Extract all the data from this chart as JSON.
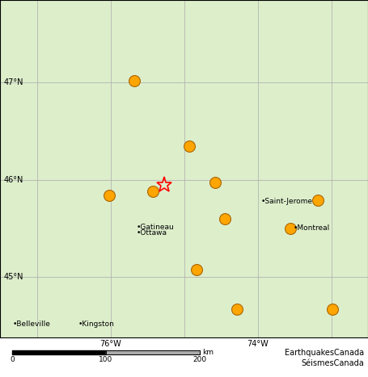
{
  "lon_min": -77.5,
  "lon_max": -72.5,
  "lat_min": 44.38,
  "lat_max": 47.85,
  "bg_color": "#ddeecb",
  "water_color": "#6ab4d8",
  "grid_color": "#aaaaaa",
  "border_color": "#333333",
  "lat_ticks": [
    45,
    46,
    47
  ],
  "lon_ticks": [
    -77,
    -76,
    -75,
    -74,
    -73
  ],
  "earthquakes": [
    {
      "lon": -75.68,
      "lat": 47.02
    },
    {
      "lon": -74.93,
      "lat": 46.35
    },
    {
      "lon": -75.42,
      "lat": 45.88
    },
    {
      "lon": -74.58,
      "lat": 45.97
    },
    {
      "lon": -74.45,
      "lat": 45.6
    },
    {
      "lon": -73.55,
      "lat": 45.5
    },
    {
      "lon": -73.18,
      "lat": 45.79
    },
    {
      "lon": -74.83,
      "lat": 45.08
    },
    {
      "lon": -74.28,
      "lat": 44.67
    },
    {
      "lon": -72.98,
      "lat": 44.67
    },
    {
      "lon": -76.02,
      "lat": 45.84
    }
  ],
  "eq_markersize": 10,
  "earthquake_color": "#FFA500",
  "earthquake_edge_color": "#aa6600",
  "star_lon": -75.27,
  "star_lat": 45.95,
  "cities": [
    {
      "name": "•Gatineau",
      "lon": -75.7,
      "lat": 45.478,
      "ha": "left",
      "va": "bottom"
    },
    {
      "name": "•Ottawa",
      "lon": -75.7,
      "lat": 45.42,
      "ha": "left",
      "va": "bottom"
    },
    {
      "name": "•Montreal",
      "lon": -73.56,
      "lat": 45.508,
      "ha": "left",
      "va": "center"
    },
    {
      "name": "•Saint-Jerome",
      "lon": -74.0,
      "lat": 45.782,
      "ha": "left",
      "va": "center"
    },
    {
      "name": "•Belleville",
      "lon": -77.38,
      "lat": 44.515,
      "ha": "left",
      "va": "center"
    },
    {
      "name": "•Kingston",
      "lon": -76.49,
      "lat": 44.515,
      "ha": "left",
      "va": "center"
    }
  ],
  "t_label_lon": -72.52,
  "t_label_lat": 46.35,
  "font_size_cities": 6.5,
  "font_size_axis": 7,
  "font_size_scalebar": 6.5,
  "font_size_credit": 7,
  "title_line1": "EarthquakesCanada",
  "title_line2": "SéismesCanada",
  "scalebar_km0": 0,
  "scalebar_km100": 100,
  "scalebar_km200": 200
}
